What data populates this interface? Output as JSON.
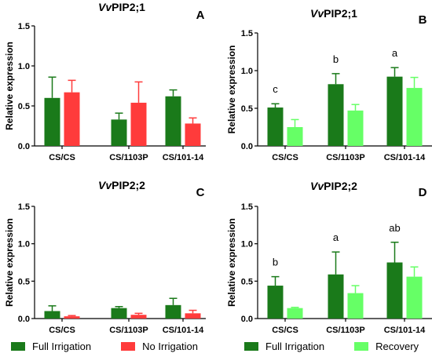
{
  "legends": {
    "left": [
      {
        "label": "Full Irrigation",
        "color": "#1a7a1a"
      },
      {
        "label": "No Irrigation",
        "color": "#ff3b3b"
      }
    ],
    "right": [
      {
        "label": "Full Irrigation",
        "color": "#1a7a1a"
      },
      {
        "label": "Recovery",
        "color": "#66ff66"
      }
    ]
  },
  "chart_data": [
    {
      "panel": "A",
      "type": "bar",
      "title_italic": "Vv",
      "title_rest": "PIP2;1",
      "ylabel": "Relative expression",
      "ylim": [
        0,
        1.5
      ],
      "yticks": [
        "0.0",
        "0.5",
        "1.0",
        "1.5"
      ],
      "categories": [
        "CS/CS",
        "CS/1103P",
        "CS/101-14"
      ],
      "series": [
        {
          "name": "Full Irrigation",
          "color": "#1a7a1a",
          "values": [
            0.6,
            0.33,
            0.62
          ],
          "errors": [
            0.26,
            0.08,
            0.08
          ]
        },
        {
          "name": "No Irrigation",
          "color": "#ff3b3b",
          "values": [
            0.67,
            0.54,
            0.28
          ],
          "errors": [
            0.15,
            0.26,
            0.07
          ]
        }
      ],
      "letters": []
    },
    {
      "panel": "B",
      "type": "bar",
      "title_italic": "Vv",
      "title_rest": "PIP2;1",
      "ylabel": "Relative expression",
      "ylim": [
        0,
        1.5
      ],
      "yticks": [
        "0.0",
        "0.5",
        "1.0",
        "1.5"
      ],
      "categories": [
        "CS/CS",
        "CS/1103P",
        "CS/101-14"
      ],
      "series": [
        {
          "name": "Full Irrigation",
          "color": "#1a7a1a",
          "values": [
            0.51,
            0.82,
            0.92
          ],
          "errors": [
            0.05,
            0.14,
            0.12
          ]
        },
        {
          "name": "Recovery",
          "color": "#66ff66",
          "values": [
            0.25,
            0.47,
            0.77
          ],
          "errors": [
            0.1,
            0.08,
            0.14
          ]
        }
      ],
      "letters": [
        "c",
        "b",
        "a"
      ]
    },
    {
      "panel": "C",
      "type": "bar",
      "title_italic": "Vv",
      "title_rest": "PIP2;2",
      "ylabel": "Relative expression",
      "ylim": [
        0,
        1.5
      ],
      "yticks": [
        "0.0",
        "0.5",
        "1.0",
        "1.5"
      ],
      "categories": [
        "CS/CS",
        "CS/1103P",
        "CS/101-14"
      ],
      "series": [
        {
          "name": "Full Irrigation",
          "color": "#1a7a1a",
          "values": [
            0.1,
            0.14,
            0.18
          ],
          "errors": [
            0.07,
            0.02,
            0.09
          ]
        },
        {
          "name": "No Irrigation",
          "color": "#ff3b3b",
          "values": [
            0.03,
            0.05,
            0.07
          ],
          "errors": [
            0.01,
            0.02,
            0.04
          ]
        }
      ],
      "letters": []
    },
    {
      "panel": "D",
      "type": "bar",
      "title_italic": "Vv",
      "title_rest": "PIP2;2",
      "ylabel": "Relative expression",
      "ylim": [
        0,
        1.5
      ],
      "yticks": [
        "0.0",
        "0.5",
        "1.0",
        "1.5"
      ],
      "categories": [
        "CS/CS",
        "CS/1103P",
        "CS/101-14"
      ],
      "series": [
        {
          "name": "Full Irrigation",
          "color": "#1a7a1a",
          "values": [
            0.44,
            0.59,
            0.75
          ],
          "errors": [
            0.12,
            0.3,
            0.27
          ]
        },
        {
          "name": "Recovery",
          "color": "#66ff66",
          "values": [
            0.14,
            0.34,
            0.56
          ],
          "errors": [
            0.01,
            0.1,
            0.13
          ]
        }
      ],
      "letters": [
        "b",
        "a",
        "ab"
      ]
    }
  ]
}
